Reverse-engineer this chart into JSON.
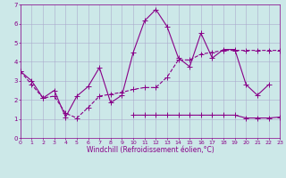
{
  "title": "",
  "xlabel": "Windchill (Refroidissement éolien,°C)",
  "background_color": "#cce8e8",
  "grid_color": "#aaaacc",
  "line_color": "#880088",
  "xmin": 0,
  "xmax": 23,
  "ymin": 0,
  "ymax": 7,
  "series1_x": [
    0,
    1,
    2,
    3,
    4,
    5,
    6,
    7,
    8,
    9,
    10,
    11,
    12,
    13,
    14,
    15,
    16,
    17,
    18,
    19,
    20,
    21,
    22
  ],
  "series1_y": [
    3.5,
    3.0,
    2.1,
    2.5,
    1.1,
    2.2,
    2.7,
    3.7,
    1.85,
    2.25,
    4.5,
    6.15,
    6.75,
    5.85,
    4.2,
    3.75,
    5.5,
    4.2,
    4.65,
    4.65,
    2.8,
    2.25,
    2.8
  ],
  "series2_x": [
    0,
    1,
    2,
    3,
    4,
    5,
    6,
    7,
    8,
    9,
    10,
    11,
    12,
    13,
    14,
    15,
    16,
    17,
    18,
    19,
    20,
    21,
    22,
    23
  ],
  "series2_y": [
    3.5,
    2.8,
    2.1,
    2.2,
    1.3,
    1.05,
    1.6,
    2.2,
    2.3,
    2.4,
    2.55,
    2.65,
    2.65,
    3.2,
    4.1,
    4.1,
    4.4,
    4.5,
    4.6,
    4.6,
    4.6,
    4.6,
    4.6,
    4.6
  ],
  "series3_x": [
    10,
    11,
    12,
    13,
    14,
    15,
    16,
    17,
    18,
    19,
    20,
    21,
    22,
    23
  ],
  "series3_y": [
    1.2,
    1.2,
    1.2,
    1.2,
    1.2,
    1.2,
    1.2,
    1.2,
    1.2,
    1.2,
    1.05,
    1.05,
    1.05,
    1.1
  ]
}
